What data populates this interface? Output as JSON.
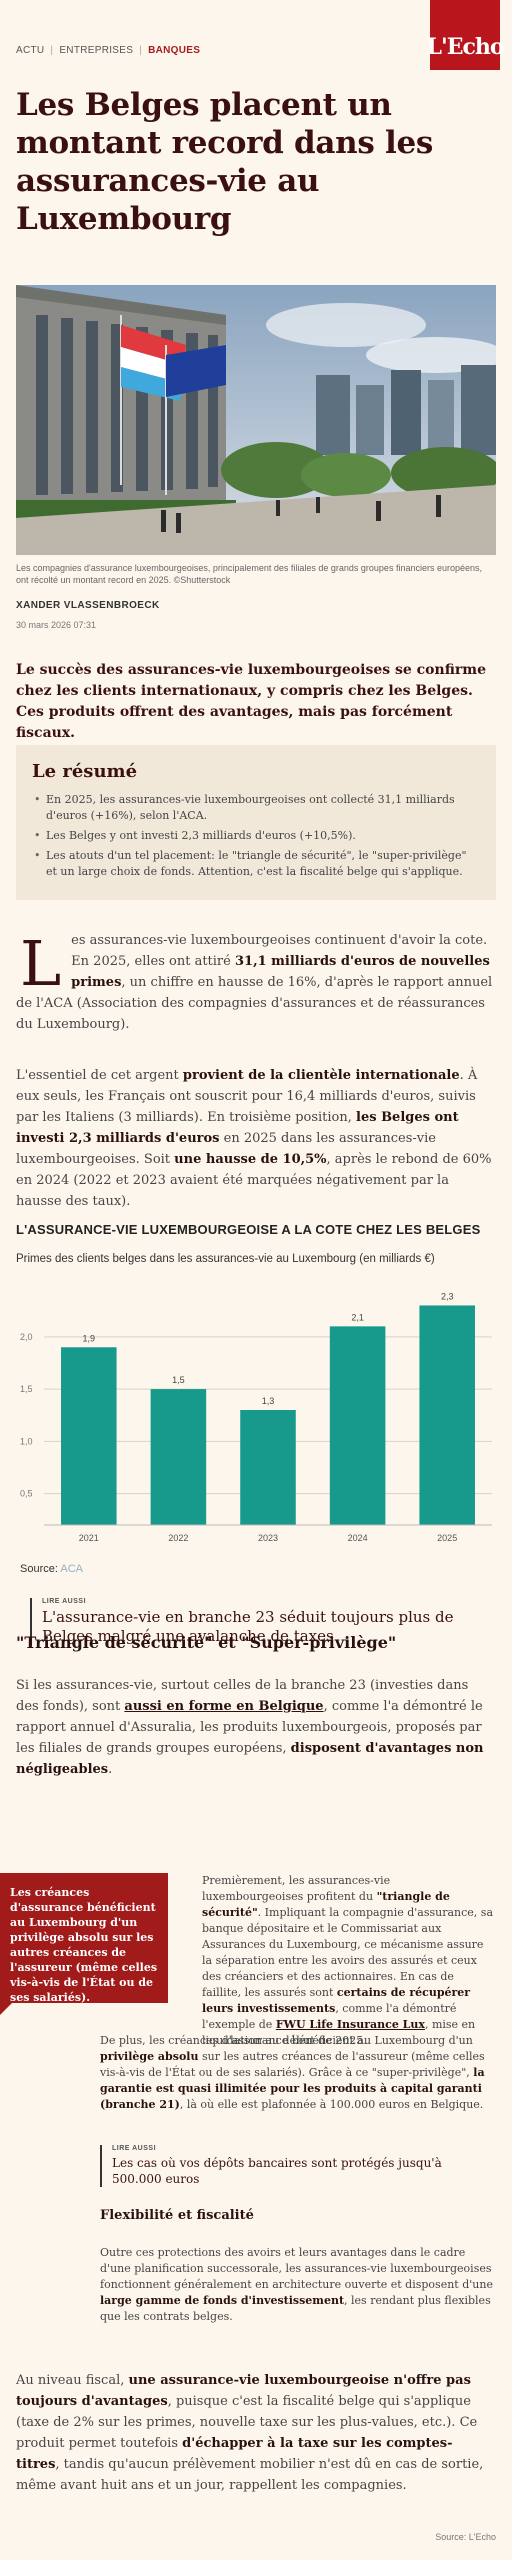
{
  "breadcrumb": {
    "items": [
      "ACTU",
      "ENTREPRISES"
    ],
    "active": "BANQUES"
  },
  "logo": {
    "text": "L'Echo",
    "color": "#b8151c"
  },
  "headline": "Les Belges placent un montant record dans les assurances-vie au Luxembourg",
  "hero": {
    "caption": "Les compagnies d'assurance luxembourgeoises, principalement des filiales de grands groupes financiers européens, ont récolté un montant record en 2025. ©Shutterstock"
  },
  "byline": {
    "author": "XANDER VLASSENBROECK",
    "date": "30 mars 2026 07:31"
  },
  "lede": "Le succès des assurances-vie luxembourgeoises se confirme chez les clients internationaux, y compris chez les Belges. Ces produits offrent des avantages, mais pas forcément fiscaux.",
  "summary": {
    "title": "Le résumé",
    "items": [
      "En 2025, les assurances-vie luxembourgeoises ont collecté 31,1 milliards d'euros (+16%), selon l'ACA.",
      "Les Belges y ont investi 2,3 milliards d'euros (+10,5%).",
      "Les atouts d'un tel placement: le \"triangle de sécurité\", le \"super-privilège\" et un large choix de fonds. Attention, c'est la fiscalité belge qui s'applique."
    ]
  },
  "body": {
    "dropcap": "L",
    "p1_a": "es assurances-vie luxembourgeoises continuent d'avoir la cote. En 2025, elles ont attiré ",
    "p1_b": "31,1 milliards d'euros de nouvelles primes",
    "p1_c": ", un chiffre en hausse de 16%, d'après le rapport annuel de l'ACA (Association des compagnies d'assurances et de réassurances du Luxembourg).",
    "p2_a": "L'essentiel de cet argent ",
    "p2_b": "provient de la clientèle internationale",
    "p2_c": ". À eux seuls, les Français ont souscrit pour 16,4 milliards d'euros, suivis par les Italiens (3 milliards). En troisième position, ",
    "p2_d": "les Belges ont investi 2,3 milliards d'euros",
    "p2_e": " en 2025 dans les assurances-vie luxembourgeoises. Soit ",
    "p2_f": "une hausse de 10,5%",
    "p2_g": ", après le rebond de 60% en 2024 (2022 et 2023 avaient été marquées négativement par la hausse des taux)."
  },
  "chart_data": {
    "type": "bar",
    "title": "L'ASSURANCE-VIE LUXEMBOURGEOISE A LA COTE CHEZ LES BELGES",
    "subtitle": "Primes des clients belges dans les assurances-vie au Luxembourg (en milliards €)",
    "categories": [
      "2021",
      "2022",
      "2023",
      "2024",
      "2025"
    ],
    "values": [
      1.9,
      1.5,
      1.3,
      2.1,
      2.3
    ],
    "value_labels": [
      "1,9",
      "1,5",
      "1,3",
      "2,1",
      "2,3"
    ],
    "yticks": [
      "0,5",
      "1,0",
      "1,5",
      "2,0"
    ],
    "ylim": [
      0.2,
      2.4
    ],
    "grid": true,
    "bar_color": "#17998c",
    "source_label": "Source: ",
    "source": "ACA"
  },
  "readalso1": {
    "tag": "LIRE AUSSI",
    "text": "L'assurance-vie en branche 23 séduit toujours plus de Belges malgré une avalanche de taxes"
  },
  "section1": {
    "title": "\"Triangle de sécurité\" et \"Super-privilège\"",
    "p_a": "Si les assurances-vie, surtout celles de la branche 23 (investies dans des fonds), sont ",
    "p_b": "aussi en forme en Belgique",
    "p_c": ", comme l'a démontré le rapport annuel d'Assuralia, les produits luxembourgeois, proposés par les filiales de grands groupes européens, ",
    "p_d": "disposent d'avantages non négligeables",
    "p_e": "."
  },
  "quote": "Les créances d'assurance bénéficient au Luxembourg d'un privilège absolu sur les autres créances de l'assureur (même celles vis-à-vis de l'État ou de ses salariés).",
  "section1b": {
    "p_a": "Premièrement, les assurances-vie luxembourgeoises profitent du ",
    "p_b": "\"triangle de sécurité\"",
    "p_c": ". Impliquant la compagnie d'assurance, sa banque dépositaire et le Commissariat aux Assurances du Luxembourg, ce mécanisme assure la séparation entre les avoirs des assurés et ceux des créanciers et des actionnaires. En cas de faillite, les assurés sont ",
    "p_d": "certains de récupérer leurs investissements",
    "p_e": ", comme l'a démontré l'exemple de ",
    "p_f": "FWU Life Insurance Lux",
    "p_g": ", mise en liquidation au début de 2025.",
    "q_a": "De plus, les créances d'assurance bénéficient au Luxembourg d'un ",
    "q_b": "privilège absolu",
    "q_c": " sur les autres créances de l'assureur (même celles vis-à-vis de l'État ou de ses salariés). Grâce à ce \"super-privilège\", ",
    "q_d": "la garantie est quasi illimitée pour les produits à capital garanti (branche 21)",
    "q_e": ", là où elle est plafonnée à 100.000 euros en Belgique."
  },
  "readalso2": {
    "tag": "LIRE AUSSI",
    "text": "Les cas où vos dépôts bancaires sont protégés jusqu'à 500.000 euros"
  },
  "section2": {
    "title": "Flexibilité et fiscalité",
    "p_a": "Outre ces protections des avoirs et leurs avantages dans le cadre d'une planification successorale, les assurances-vie luxembourgeoises fonctionnent généralement en architecture ouverte et disposent d'une ",
    "p_b": "large gamme de fonds d'investissement",
    "p_c": ", les rendant plus flexibles que les contrats belges."
  },
  "final": {
    "p_a": "Au niveau fiscal, ",
    "p_b": "une assurance-vie luxembourgeoise n'offre pas toujours d'avantages",
    "p_c": ", puisque c'est la fiscalité belge qui s'applique (taxe de 2% sur les primes, nouvelle taxe sur les plus-values, etc.). Ce produit permet toutefois ",
    "p_d": "d'échapper à la taxe sur les comptes-titres",
    "p_e": ", tandis qu'aucun prélèvement mobilier n'est dû en cas de sortie, même avant huit ans et un jour, rappellent les compagnies."
  },
  "footer_source": "Source: L'Echo"
}
